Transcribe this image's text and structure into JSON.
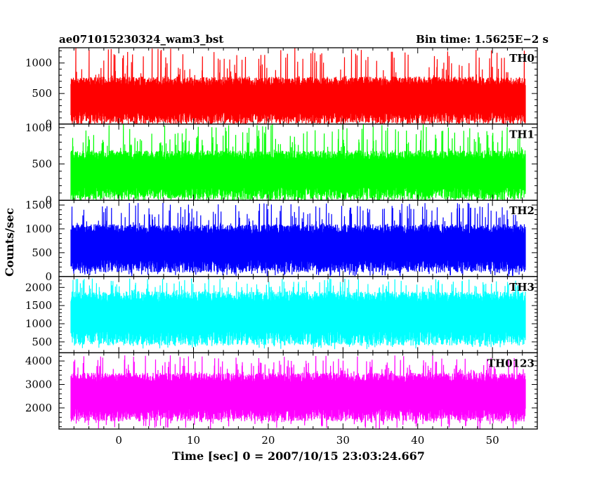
{
  "header": {
    "left_title": "ae071015230324_wam3_bst",
    "right_title": "Bin time: 1.5625E−2 s"
  },
  "chart_data": {
    "type": "line",
    "xlabel": "Time [sec] 0 = 2007/10/15 23:03:24.667",
    "ylabel": "Counts/sec",
    "xlim": [
      -8,
      56
    ],
    "x_ticks": [
      0,
      10,
      20,
      30,
      40,
      50
    ],
    "x_tick_labels": [
      "0",
      "10",
      "20",
      "30",
      "40",
      "50"
    ],
    "bin_time_s": 0.015625,
    "grid": false,
    "panels": [
      {
        "name": "TH0",
        "color": "#ff0000",
        "ylim": [
          0,
          1250
        ],
        "y_ticks": [
          0,
          500,
          1000
        ],
        "y_tick_labels": [
          "0",
          "500",
          "1000"
        ],
        "band": {
          "low": 100,
          "high": 700,
          "spike_max": 1250,
          "min": 0
        }
      },
      {
        "name": "TH1",
        "color": "#00ff00",
        "ylim": [
          0,
          1050
        ],
        "y_ticks": [
          0,
          500,
          1000
        ],
        "y_tick_labels": [
          "0",
          "500",
          "1000"
        ],
        "band": {
          "low": 90,
          "high": 620,
          "spike_max": 1050,
          "min": 0
        }
      },
      {
        "name": "TH2",
        "color": "#0000ff",
        "ylim": [
          0,
          1600
        ],
        "y_ticks": [
          0,
          500,
          1000,
          1500
        ],
        "y_tick_labels": [
          "0",
          "500",
          "1000",
          "1500"
        ],
        "band": {
          "low": 220,
          "high": 1000,
          "spike_max": 1550,
          "min": 0
        }
      },
      {
        "name": "TH3",
        "color": "#00ffff",
        "ylim": [
          200,
          2300
        ],
        "y_ticks": [
          500,
          1000,
          1500,
          2000
        ],
        "y_tick_labels": [
          "500",
          "1000",
          "1500",
          "2000"
        ],
        "band": {
          "low": 600,
          "high": 1750,
          "spike_max": 2250,
          "min": 300
        }
      },
      {
        "name": "TH0123",
        "color": "#ff00ff",
        "ylim": [
          1100,
          4350
        ],
        "y_ticks": [
          2000,
          3000,
          4000
        ],
        "y_tick_labels": [
          "2000",
          "3000",
          "4000"
        ],
        "band": {
          "low": 1700,
          "high": 3300,
          "spike_max": 4250,
          "min": 1100
        }
      }
    ]
  }
}
